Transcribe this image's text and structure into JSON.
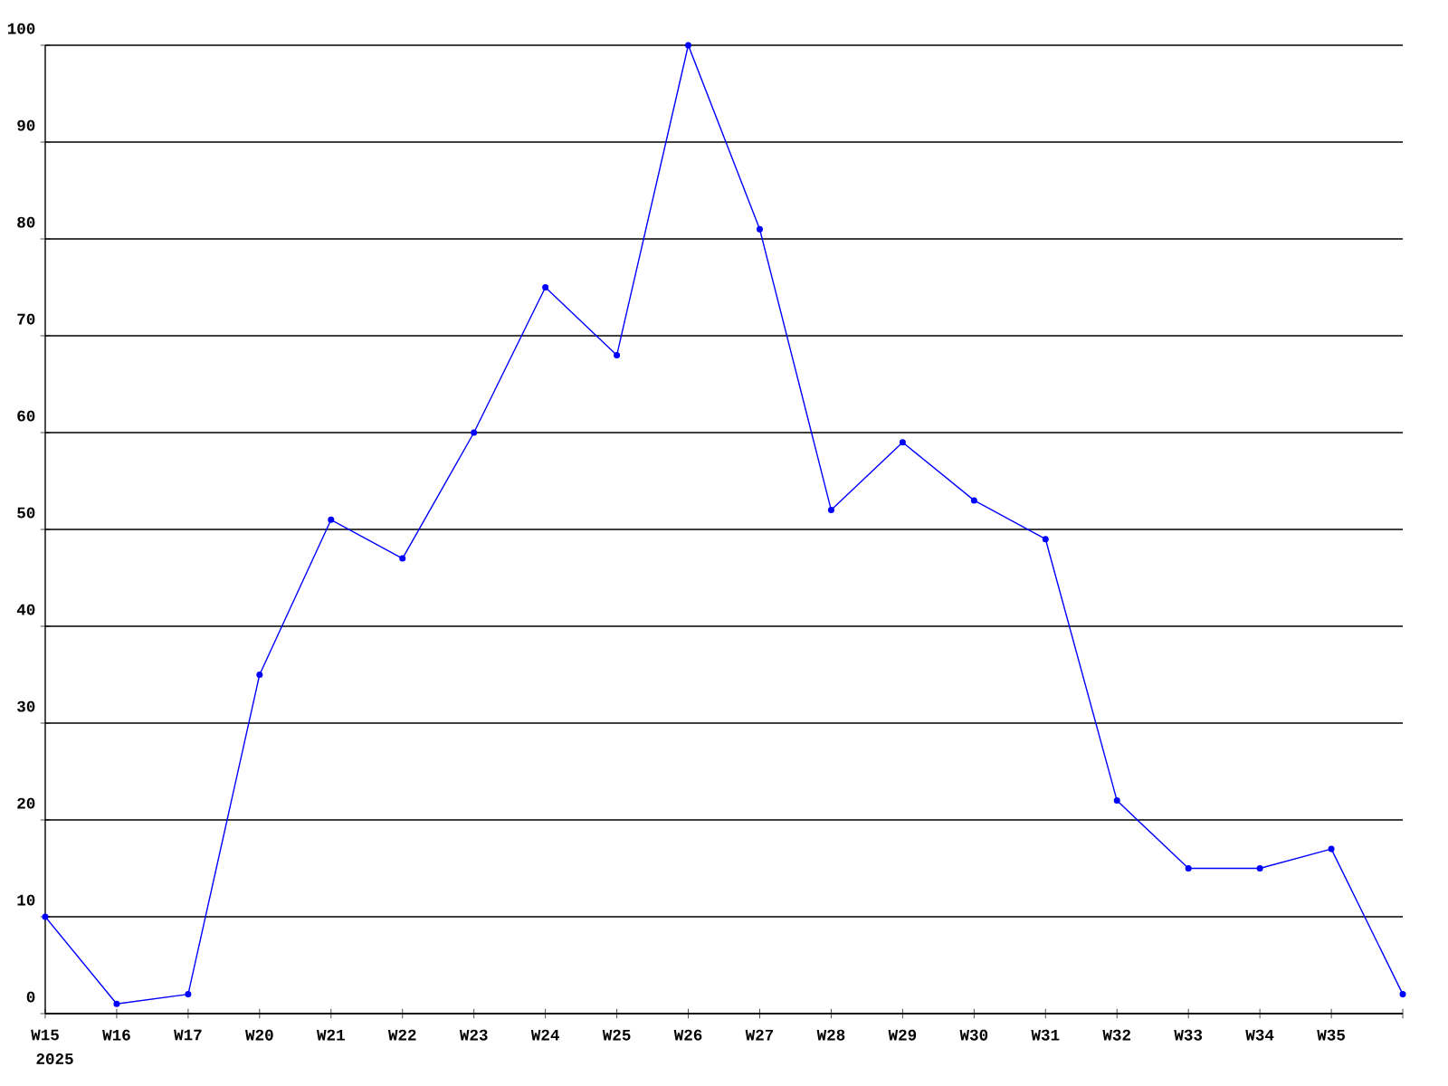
{
  "chart_data": {
    "type": "line",
    "categories": [
      "W15",
      "W16",
      "W17",
      "W20",
      "W21",
      "W22",
      "W23",
      "W24",
      "W25",
      "W26",
      "W27",
      "W28",
      "W29",
      "W30",
      "W31",
      "W32",
      "W33",
      "W34",
      "W35",
      null
    ],
    "values": [
      10,
      1,
      2,
      35,
      51,
      47,
      60,
      75,
      68,
      100,
      81,
      52,
      59,
      53,
      49,
      22,
      15,
      15,
      17,
      2
    ],
    "color": "#0000ff",
    "ylim": [
      0,
      100
    ],
    "yticks": [
      0,
      10,
      20,
      30,
      40,
      50,
      60,
      70,
      80,
      90,
      100
    ],
    "grid": "y",
    "marker": "circle",
    "line_style": "solid",
    "annotations": [
      "2025"
    ]
  }
}
